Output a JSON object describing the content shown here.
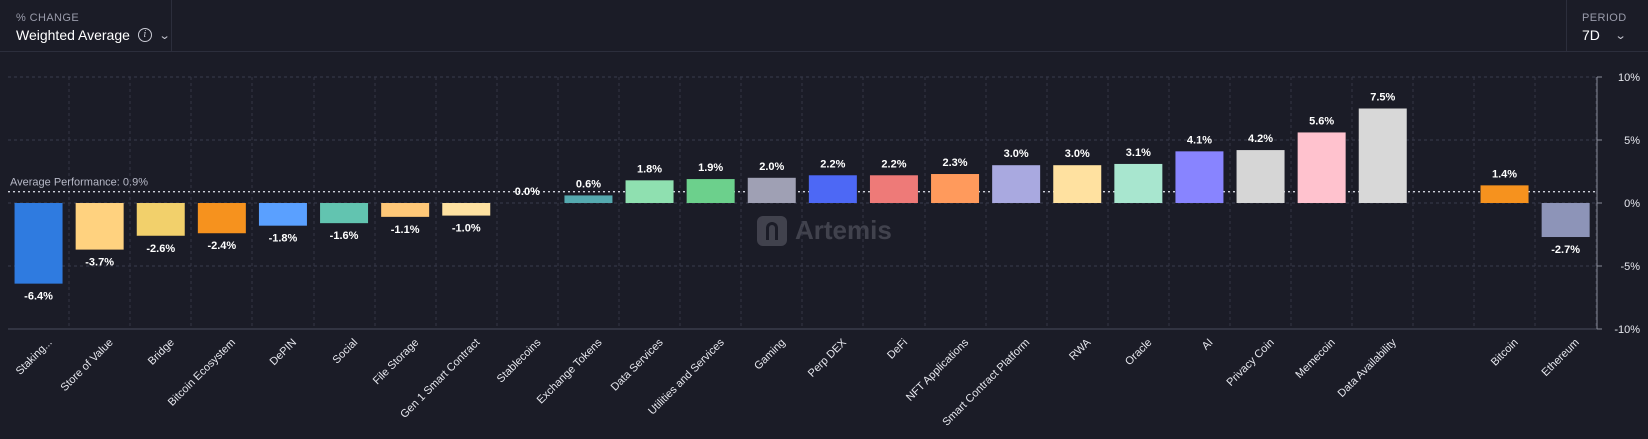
{
  "header": {
    "metric_caption": "% CHANGE",
    "metric_value": "Weighted Average",
    "info_icon": "info-icon",
    "period_caption": "PERIOD",
    "period_value": "7D"
  },
  "watermark": {
    "text": "Artemis"
  },
  "chart_data": {
    "type": "bar",
    "title": "",
    "xlabel": "",
    "ylabel": "",
    "ylim": [
      -10,
      10
    ],
    "y_ticks": [
      "10%",
      "5%",
      "0%",
      "-5%",
      "-10%"
    ],
    "y_tick_values": [
      10,
      5,
      0,
      -5,
      -10
    ],
    "grid": true,
    "average_line": {
      "label": "Average Performance: 0.9%",
      "value": 0.9
    },
    "groups": [
      {
        "categories": [
          "Staking...",
          "Store of Value",
          "Bridge",
          "Bitcoin Ecosystem",
          "DePIN",
          "Social",
          "File Storage",
          "Gen 1 Smart Contract",
          "Stablecoins",
          "Exchange Tokens",
          "Data Services",
          "Utilities and Services",
          "Gaming",
          "Perp DEX",
          "DeFi",
          "NFT Applications",
          "Smart Contract Platform",
          "RWA",
          "Oracle",
          "AI",
          "Privacy Coin",
          "Memecoin",
          "Data Availability"
        ],
        "values": [
          -6.4,
          -3.7,
          -2.6,
          -2.4,
          -1.8,
          -1.6,
          -1.1,
          -1.0,
          0.0,
          0.6,
          1.8,
          1.9,
          2.0,
          2.2,
          2.2,
          2.3,
          3.0,
          3.0,
          3.1,
          4.1,
          4.2,
          5.6,
          7.5
        ],
        "labels": [
          "-6.4%",
          "-3.7%",
          "-2.6%",
          "-2.4%",
          "-1.8%",
          "-1.6%",
          "-1.1%",
          "-1.0%",
          "0.0%",
          "0.6%",
          "1.8%",
          "1.9%",
          "2.0%",
          "2.2%",
          "2.2%",
          "2.3%",
          "3.0%",
          "3.0%",
          "3.1%",
          "4.1%",
          "4.2%",
          "5.6%",
          "7.5%"
        ],
        "colors": [
          "#2f7be0",
          "#ffd27f",
          "#f2d06b",
          "#f6921e",
          "#5aa0ff",
          "#62c4b0",
          "#ffc878",
          "#ffe2a1",
          "#888888",
          "#55aab0",
          "#8fe0b0",
          "#6cd08c",
          "#9fa0b4",
          "#4d68f5",
          "#ee7a78",
          "#ff9a5c",
          "#a9a9e0",
          "#ffe1a0",
          "#a8e6cf",
          "#8884ff",
          "#d6d6d6",
          "#ffc2ce",
          "#d8d8d8"
        ]
      },
      {
        "categories": [
          "Bitcoin",
          "Ethereum"
        ],
        "values": [
          1.4,
          -2.7
        ],
        "labels": [
          "1.4%",
          "-2.7%"
        ],
        "colors": [
          "#f6921e",
          "#8d94b8"
        ]
      }
    ]
  }
}
